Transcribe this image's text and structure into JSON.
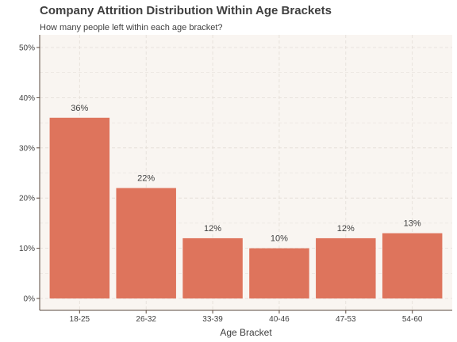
{
  "chart_data": {
    "type": "bar",
    "title": "Company Attrition Distribution Within Age Brackets",
    "subtitle": "How many people left within each age bracket?",
    "xlabel": "Age Bracket",
    "ylabel": "",
    "categories": [
      "18-25",
      "26-32",
      "33-39",
      "40-46",
      "47-53",
      "54-60"
    ],
    "values": [
      36,
      22,
      12,
      10,
      12,
      13
    ],
    "data_labels": [
      "36%",
      "22%",
      "12%",
      "10%",
      "12%",
      "13%"
    ],
    "ylim": [
      0,
      50
    ],
    "y_ticks": [
      0,
      10,
      20,
      30,
      40,
      50
    ],
    "y_tick_labels": [
      "0%",
      "10%",
      "20%",
      "30%",
      "40%",
      "50%"
    ],
    "grid": true,
    "legend": "none",
    "colors": {
      "bar": "#de745c",
      "panel_background": "#f9f5f1",
      "grid": "#e3ddd7",
      "axis_line": "#5a4a3f",
      "text": "#3f3f3f"
    }
  }
}
